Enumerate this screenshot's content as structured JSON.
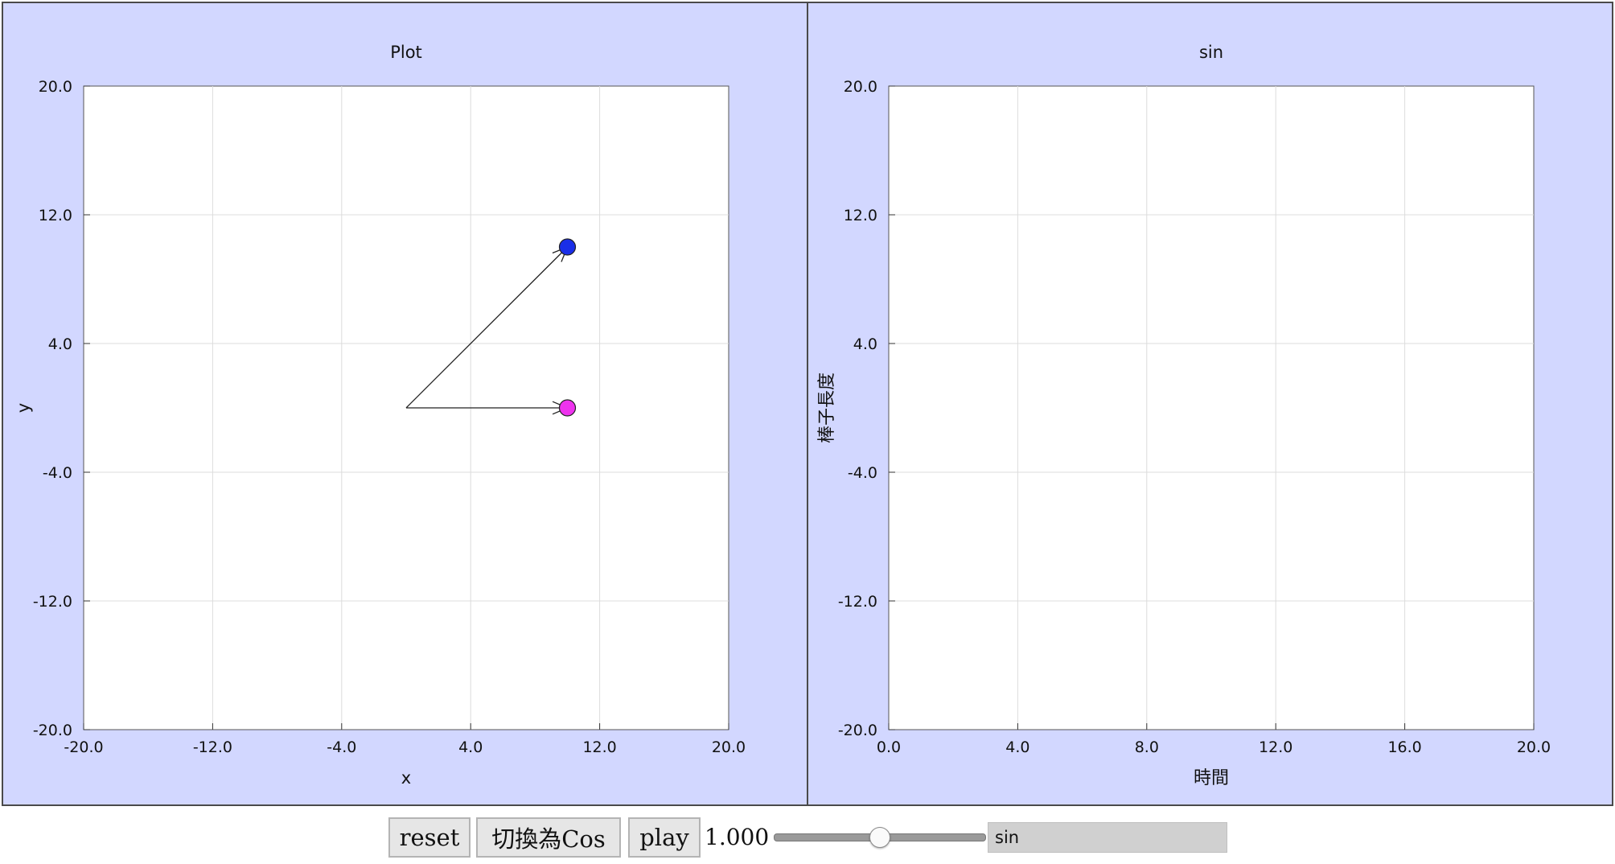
{
  "left_plot": {
    "title": "Plot",
    "xlabel": "x",
    "ylabel": "y",
    "x_ticks": [
      "-20.0",
      "-12.0",
      "-4.0",
      "4.0",
      "12.0",
      "20.0"
    ],
    "y_ticks": [
      "20.0",
      "12.0",
      "4.0",
      "-4.0",
      "-12.0",
      "-20.0"
    ]
  },
  "right_plot": {
    "title": "sin",
    "xlabel": "時間",
    "ylabel": "棒子長度",
    "x_ticks": [
      "0.0",
      "4.0",
      "8.0",
      "12.0",
      "16.0",
      "20.0"
    ],
    "y_ticks": [
      "20.0",
      "12.0",
      "4.0",
      "-4.0",
      "-12.0",
      "-20.0"
    ]
  },
  "controls": {
    "reset_label": "reset",
    "toggle_label": "切換為Cos",
    "play_label": "play",
    "slider_readout": "1.000",
    "function_field_value": "sin"
  },
  "slider": {
    "min": 0,
    "max": 2,
    "value": 1.0
  },
  "colors": {
    "panel_background": "#d2d7ff",
    "plot_background": "#ffffff",
    "grid": "#dcdcdc",
    "blue_point": "#1a2ee8",
    "magenta_point": "#ee33ee"
  },
  "chart_data": [
    {
      "type": "scatter",
      "title": "Plot",
      "xlabel": "x",
      "ylabel": "y",
      "xlim": [
        -20,
        20
      ],
      "ylim": [
        -20,
        20
      ],
      "grid": true,
      "x_ticks": [
        -20,
        -12,
        -4,
        4,
        12,
        20
      ],
      "y_ticks": [
        -20,
        -12,
        -4,
        4,
        12,
        20
      ],
      "vectors": [
        {
          "from": [
            0,
            0
          ],
          "to": [
            10,
            10
          ]
        },
        {
          "from": [
            0,
            0
          ],
          "to": [
            10,
            0
          ]
        }
      ],
      "points": [
        {
          "x": 10,
          "y": 10,
          "color": "#1a2ee8"
        },
        {
          "x": 10,
          "y": 0,
          "color": "#ee33ee"
        }
      ]
    },
    {
      "type": "line",
      "title": "sin",
      "xlabel": "時間",
      "ylabel": "棒子長度",
      "xlim": [
        0,
        20
      ],
      "ylim": [
        -20,
        20
      ],
      "grid": true,
      "x_ticks": [
        0,
        4,
        8,
        12,
        16,
        20
      ],
      "y_ticks": [
        -20,
        -12,
        -4,
        4,
        12,
        20
      ],
      "series": []
    }
  ]
}
